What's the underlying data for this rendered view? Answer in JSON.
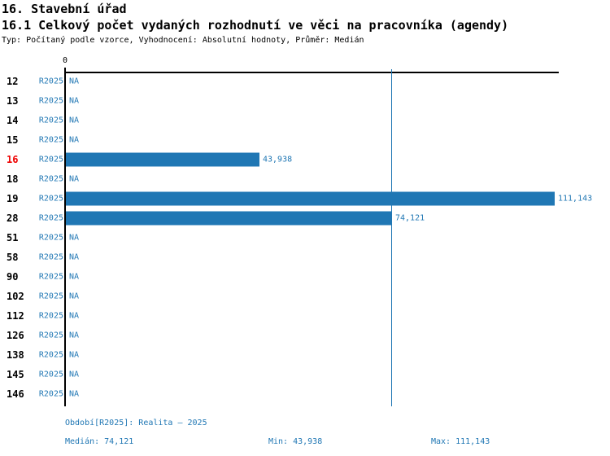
{
  "header": {
    "section_title": "16. Stavební úřad",
    "chart_title": "16.1 Celkový počet vydaných rozhodnutí ve věci na pracovníka (agendy)",
    "meta_line": "Typ: Počítaný podle vzorce, Vyhodnocení: Absolutní hodnoty, Průměr: Medián"
  },
  "chart_data": {
    "type": "bar",
    "orientation": "horizontal",
    "title": "16.1 Celkový počet vydaných rozhodnutí ve věci na pracovníka (agendy)",
    "origin_tick_label": "0",
    "xlim": [
      0,
      112300
    ],
    "grid": false,
    "legend": "none",
    "median_line_value": 74121,
    "highlighted_row_id": "16",
    "na_label": "NA",
    "rows": [
      {
        "id": "12",
        "period": "R2025",
        "value": null,
        "value_label": "NA",
        "highlight": false
      },
      {
        "id": "13",
        "period": "R2025",
        "value": null,
        "value_label": "NA",
        "highlight": false
      },
      {
        "id": "14",
        "period": "R2025",
        "value": null,
        "value_label": "NA",
        "highlight": false
      },
      {
        "id": "15",
        "period": "R2025",
        "value": null,
        "value_label": "NA",
        "highlight": false
      },
      {
        "id": "16",
        "period": "R2025",
        "value": 43938,
        "value_label": "43,938",
        "highlight": true
      },
      {
        "id": "18",
        "period": "R2025",
        "value": null,
        "value_label": "NA",
        "highlight": false
      },
      {
        "id": "19",
        "period": "R2025",
        "value": 111143,
        "value_label": "111,143",
        "highlight": false
      },
      {
        "id": "28",
        "period": "R2025",
        "value": 74121,
        "value_label": "74,121",
        "highlight": false
      },
      {
        "id": "51",
        "period": "R2025",
        "value": null,
        "value_label": "NA",
        "highlight": false
      },
      {
        "id": "58",
        "period": "R2025",
        "value": null,
        "value_label": "NA",
        "highlight": false
      },
      {
        "id": "90",
        "period": "R2025",
        "value": null,
        "value_label": "NA",
        "highlight": false
      },
      {
        "id": "102",
        "period": "R2025",
        "value": null,
        "value_label": "NA",
        "highlight": false
      },
      {
        "id": "112",
        "period": "R2025",
        "value": null,
        "value_label": "NA",
        "highlight": false
      },
      {
        "id": "126",
        "period": "R2025",
        "value": null,
        "value_label": "NA",
        "highlight": false
      },
      {
        "id": "138",
        "period": "R2025",
        "value": null,
        "value_label": "NA",
        "highlight": false
      },
      {
        "id": "145",
        "period": "R2025",
        "value": null,
        "value_label": "NA",
        "highlight": false
      },
      {
        "id": "146",
        "period": "R2025",
        "value": null,
        "value_label": "NA",
        "highlight": false
      }
    ],
    "stats": {
      "median": 74121,
      "min": 43938,
      "max": 111143
    },
    "colors": {
      "bar": "#2077b4",
      "blue_text": "#2077b4",
      "highlight_red": "#ee0000",
      "axis": "#000000"
    }
  },
  "footer": {
    "period_line": "Období[R2025]: Realita – 2025",
    "median_label": "Medián: 74,121",
    "min_label": "Min: 43,938",
    "max_label": "Max: 111,143"
  }
}
